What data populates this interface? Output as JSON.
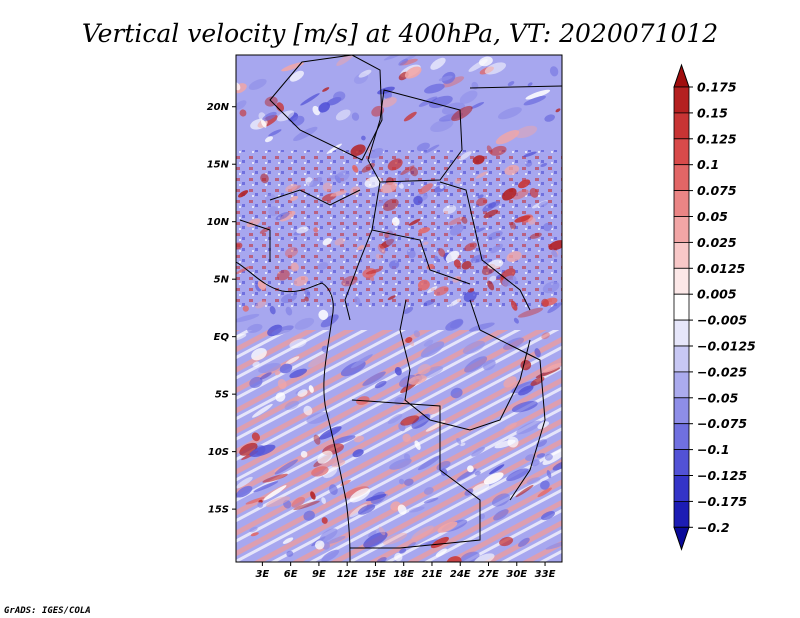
{
  "chart_data": {
    "type": "heatmap",
    "title": "Vertical velocity [m/s] at 400hPa, VT: 2020071012",
    "x_tick_labels": [
      "3E",
      "6E",
      "9E",
      "12E",
      "15E",
      "18E",
      "21E",
      "24E",
      "27E",
      "30E",
      "33E"
    ],
    "x_tick_values": [
      3,
      6,
      9,
      12,
      15,
      18,
      21,
      24,
      27,
      30,
      33
    ],
    "y_tick_labels": [
      "20N",
      "15N",
      "10N",
      "5N",
      "EQ",
      "5S",
      "10S",
      "15S"
    ],
    "y_tick_values": [
      20,
      15,
      10,
      5,
      0,
      -5,
      -10,
      -15
    ],
    "xlim": [
      0.2,
      34.8
    ],
    "ylim": [
      -19.6,
      24.5
    ],
    "colorbar": {
      "labels": [
        "0.175",
        "0.15",
        "0.125",
        "0.1",
        "0.075",
        "0.05",
        "0.025",
        "0.0125",
        "0.005",
        "−0.005",
        "−0.0125",
        "−0.025",
        "−0.05",
        "−0.075",
        "−0.1",
        "−0.125",
        "−0.175",
        "−0.2"
      ],
      "colors": [
        "#a00d0d",
        "#b42020",
        "#c83434",
        "#d84a4a",
        "#e26666",
        "#ea8585",
        "#f2a6a6",
        "#f8c8c8",
        "#fce8e8",
        "#ffffff",
        "#e6e6fa",
        "#c8c8f4",
        "#ababee",
        "#8e8ee8",
        "#7070e0",
        "#5252d6",
        "#3434c8",
        "#1c1cb4",
        "#0a0a9a"
      ]
    }
  },
  "credit": "GrADS: IGES/COLA"
}
